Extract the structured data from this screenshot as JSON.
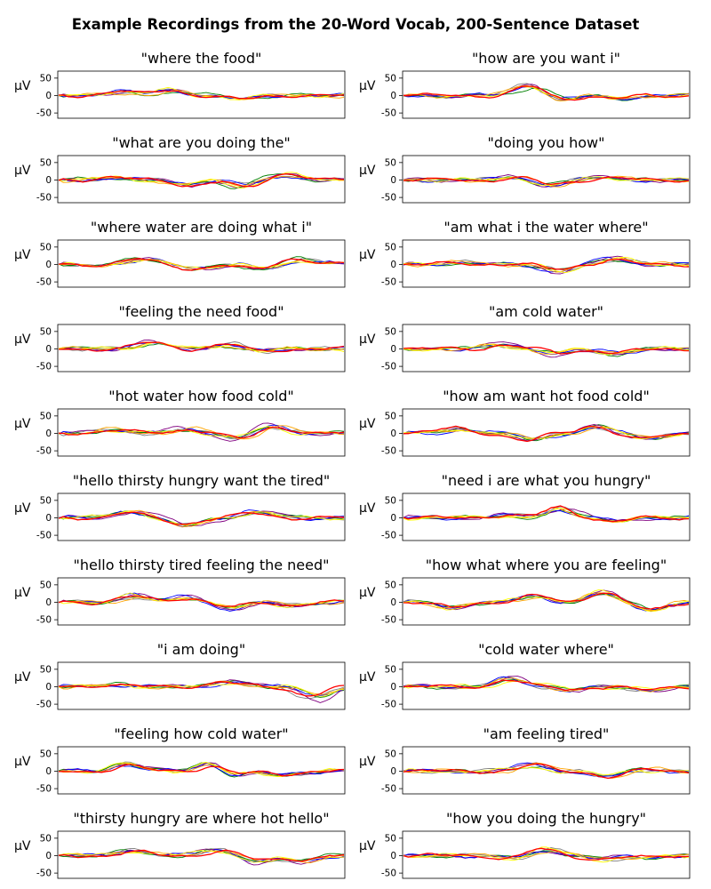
{
  "figure_title": "Example Recordings from the 20-Word Vocab, 200-Sentence Dataset",
  "colors": [
    "#808080",
    "#008000",
    "#800080",
    "#0000ff",
    "#ffa500",
    "#ffff00",
    "#ff0000"
  ],
  "chart_data": {
    "type": "line",
    "ylabel": "μV",
    "ylim": [
      -65,
      70
    ],
    "yticks": [
      -50,
      0,
      50
    ],
    "x_samples": 61,
    "grid": false,
    "panels": [
      {
        "title": "\"where the food\"",
        "bumps": [
          [
            0.22,
            12
          ],
          [
            0.4,
            15
          ],
          [
            0.65,
            -10
          ]
        ]
      },
      {
        "title": "\"how are you want i\"",
        "bumps": [
          [
            0.45,
            35
          ],
          [
            0.55,
            -15
          ],
          [
            0.75,
            -10
          ]
        ]
      },
      {
        "title": "\"what are you doing the\"",
        "bumps": [
          [
            0.18,
            8
          ],
          [
            0.45,
            -15
          ],
          [
            0.65,
            -22
          ],
          [
            0.8,
            20
          ]
        ]
      },
      {
        "title": "\"doing you how\"",
        "bumps": [
          [
            0.4,
            10
          ],
          [
            0.5,
            -18
          ],
          [
            0.7,
            8
          ]
        ]
      },
      {
        "title": "\"where water are doing what i\"",
        "bumps": [
          [
            0.3,
            15
          ],
          [
            0.5,
            -12
          ],
          [
            0.7,
            -15
          ],
          [
            0.85,
            18
          ]
        ]
      },
      {
        "title": "\"am what i the water where\"",
        "bumps": [
          [
            0.2,
            6
          ],
          [
            0.55,
            -20
          ],
          [
            0.75,
            18
          ]
        ]
      },
      {
        "title": "\"feeling the need food\"",
        "bumps": [
          [
            0.33,
            20
          ],
          [
            0.6,
            14
          ],
          [
            0.7,
            -8
          ]
        ]
      },
      {
        "title": "\"am cold water\"",
        "bumps": [
          [
            0.35,
            18
          ],
          [
            0.55,
            -18
          ],
          [
            0.75,
            -20
          ]
        ]
      },
      {
        "title": "\"hot water how food cold\"",
        "bumps": [
          [
            0.18,
            12
          ],
          [
            0.45,
            14
          ],
          [
            0.63,
            -18
          ],
          [
            0.75,
            24
          ]
        ]
      },
      {
        "title": "\"how am want hot food cold\"",
        "bumps": [
          [
            0.2,
            15
          ],
          [
            0.45,
            -20
          ],
          [
            0.68,
            20
          ],
          [
            0.85,
            -15
          ]
        ]
      },
      {
        "title": "\"hello thirsty hungry want the tired\"",
        "bumps": [
          [
            0.25,
            18
          ],
          [
            0.45,
            -22
          ],
          [
            0.7,
            16
          ]
        ]
      },
      {
        "title": "\"need i are what you hungry\"",
        "bumps": [
          [
            0.35,
            8
          ],
          [
            0.55,
            28
          ],
          [
            0.75,
            -10
          ]
        ]
      },
      {
        "title": "\"hello thirsty tired feeling the need\"",
        "bumps": [
          [
            0.25,
            22
          ],
          [
            0.45,
            16
          ],
          [
            0.6,
            -20
          ],
          [
            0.8,
            -10
          ]
        ]
      },
      {
        "title": "\"how what where you are feeling\"",
        "bumps": [
          [
            0.15,
            -15
          ],
          [
            0.45,
            18
          ],
          [
            0.68,
            28
          ],
          [
            0.85,
            -22
          ]
        ]
      },
      {
        "title": "\"i am doing\"",
        "bumps": [
          [
            0.2,
            8
          ],
          [
            0.6,
            20
          ],
          [
            0.9,
            -35
          ]
        ]
      },
      {
        "title": "\"cold water where\"",
        "bumps": [
          [
            0.38,
            22
          ],
          [
            0.6,
            -8
          ],
          [
            0.85,
            -10
          ]
        ]
      },
      {
        "title": "\"feeling how cold water\"",
        "bumps": [
          [
            0.25,
            22
          ],
          [
            0.55,
            28
          ],
          [
            0.62,
            -18
          ],
          [
            0.8,
            -12
          ]
        ]
      },
      {
        "title": "\"am feeling tired\"",
        "bumps": [
          [
            0.45,
            18
          ],
          [
            0.72,
            -18
          ],
          [
            0.85,
            6
          ]
        ]
      },
      {
        "title": "\"thirsty hungry are where hot hello\"",
        "bumps": [
          [
            0.25,
            18
          ],
          [
            0.55,
            22
          ],
          [
            0.7,
            -22
          ],
          [
            0.85,
            -18
          ]
        ]
      },
      {
        "title": "\"how you doing the hungry\"",
        "bumps": [
          [
            0.4,
            -10
          ],
          [
            0.5,
            22
          ],
          [
            0.7,
            -12
          ],
          [
            0.85,
            -8
          ]
        ]
      }
    ]
  }
}
